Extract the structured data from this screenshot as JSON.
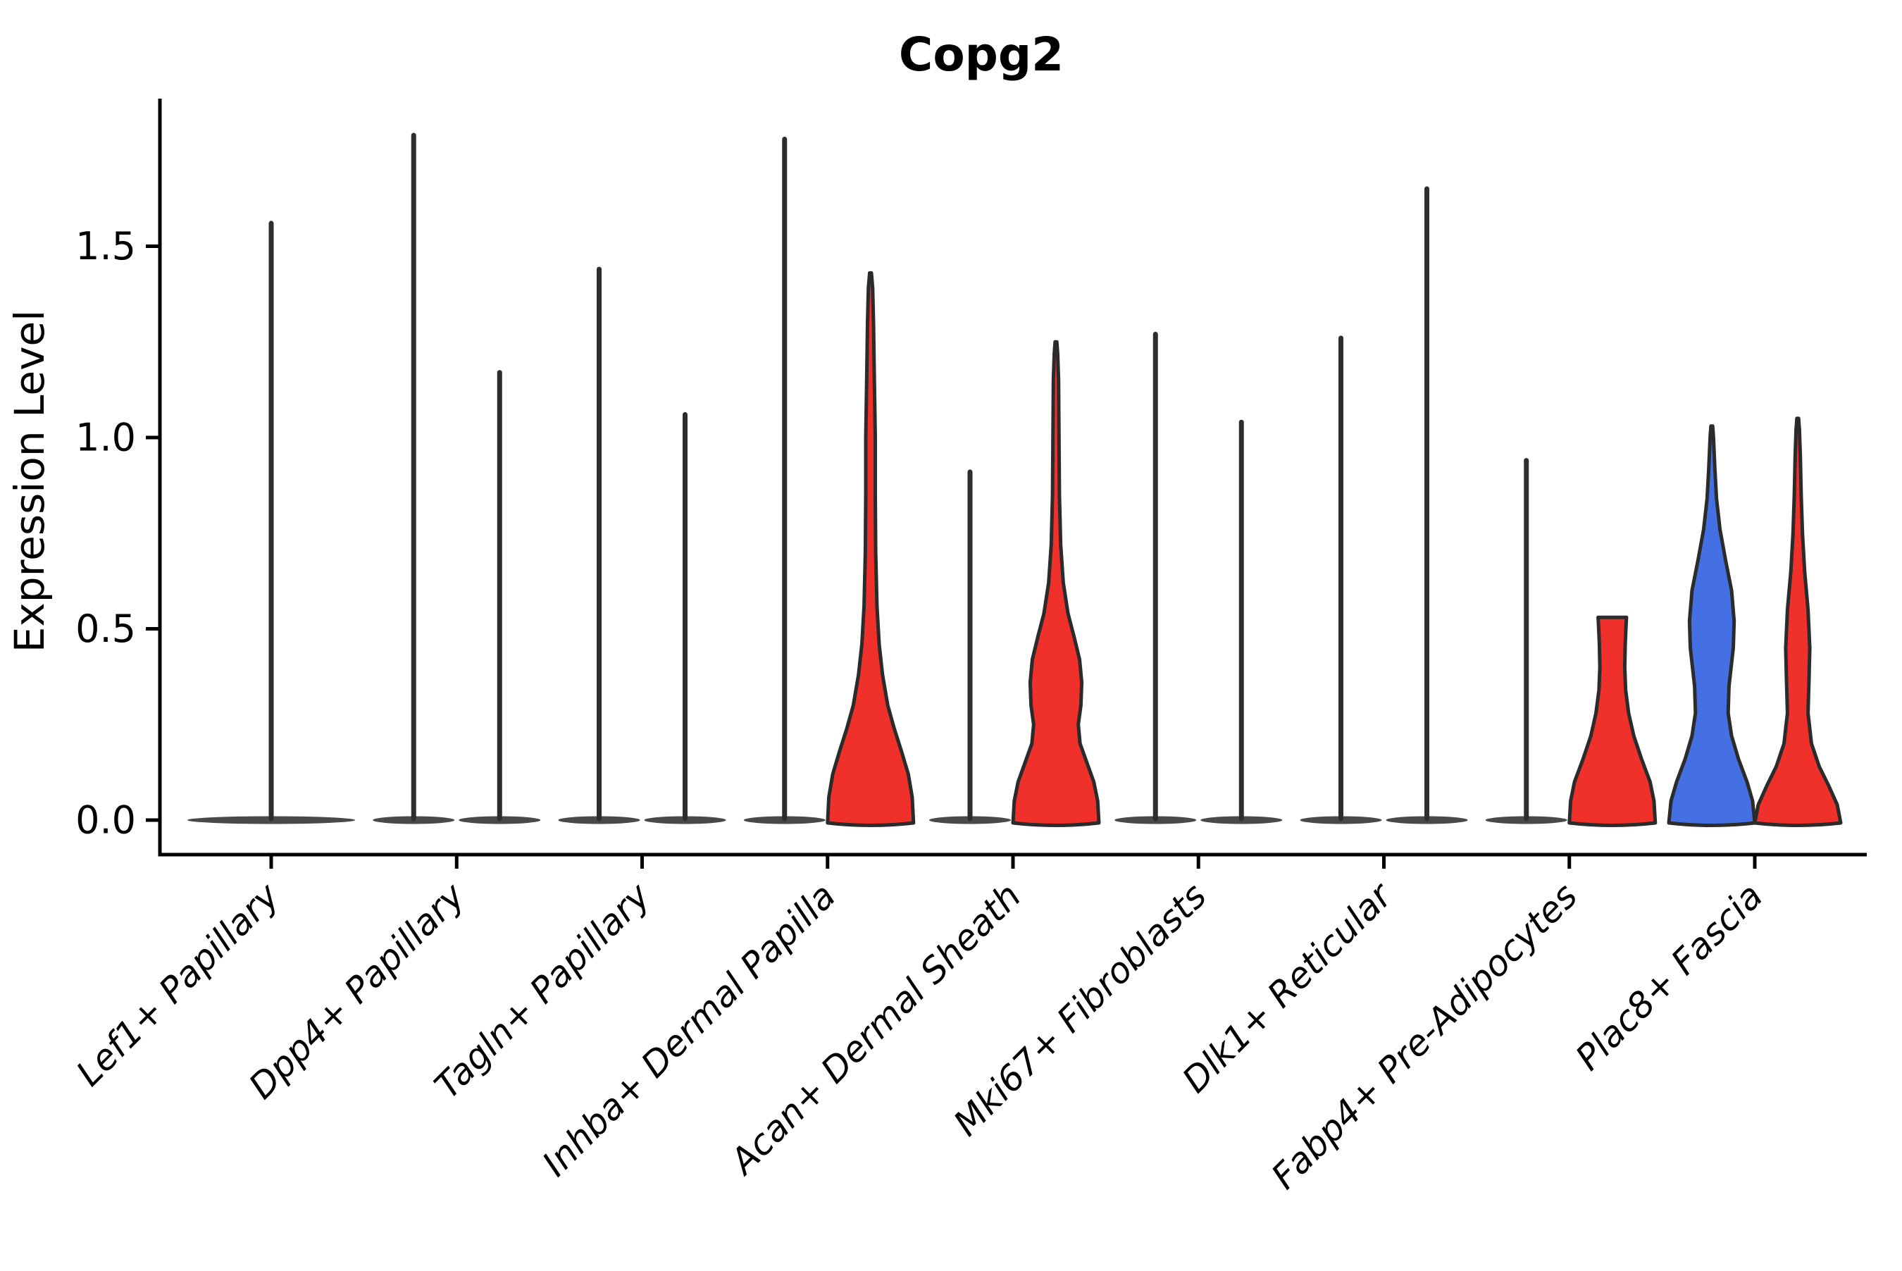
{
  "chart_data": {
    "type": "violin",
    "title": "Copg2",
    "xlabel": "",
    "ylabel": "Expression Level",
    "ytick_labels": [
      "0.0",
      "0.5",
      "1.0",
      "1.5"
    ],
    "ylim": [
      -0.09,
      1.89
    ],
    "grid": false,
    "legend": null,
    "categories": [
      "Lef1+ Papillary",
      "Dpp4+ Papillary",
      "Tagln+ Papillary",
      "Inhba+ Dermal Papilla",
      "Acan+ Dermal Sheath",
      "Mki67+ Fibroblasts",
      "Dlk1+ Reticular",
      "Fabp4+ Pre-Adipocytes",
      "Plac8+ Fascia"
    ],
    "palette": {
      "red": "#f0302b",
      "blue": "#4570e3",
      "spike": "#2d2d2d",
      "outline": "#2b2b2b",
      "axis": "#000000"
    },
    "violins": [
      {
        "category": "Lef1+ Papillary",
        "position": "center",
        "style": "spike",
        "max": 1.56
      },
      {
        "category": "Dpp4+ Papillary",
        "position": "left",
        "style": "spike",
        "max": 1.79
      },
      {
        "category": "Dpp4+ Papillary",
        "position": "right",
        "style": "spike",
        "max": 1.17
      },
      {
        "category": "Tagln+ Papillary",
        "position": "left",
        "style": "spike",
        "max": 1.44
      },
      {
        "category": "Tagln+ Papillary",
        "position": "right",
        "style": "spike",
        "max": 1.06
      },
      {
        "category": "Inhba+ Dermal Papilla",
        "position": "left",
        "style": "spike",
        "max": 1.78
      },
      {
        "category": "Inhba+ Dermal Papilla",
        "position": "right",
        "style": "body",
        "color": "red",
        "max": 1.43,
        "profile": "tall_taper"
      },
      {
        "category": "Acan+ Dermal Sheath",
        "position": "left",
        "style": "spike",
        "max": 0.91
      },
      {
        "category": "Acan+ Dermal Sheath",
        "position": "right",
        "style": "body",
        "color": "red",
        "max": 1.25,
        "profile": "double_bulge"
      },
      {
        "category": "Mki67+ Fibroblasts",
        "position": "left",
        "style": "spike",
        "max": 1.27
      },
      {
        "category": "Mki67+ Fibroblasts",
        "position": "right",
        "style": "spike",
        "max": 1.04
      },
      {
        "category": "Dlk1+ Reticular",
        "position": "left",
        "style": "spike",
        "max": 1.26
      },
      {
        "category": "Dlk1+ Reticular",
        "position": "right",
        "style": "spike",
        "max": 1.65
      },
      {
        "category": "Fabp4+ Pre-Adipocytes",
        "position": "left",
        "style": "spike",
        "max": 0.94
      },
      {
        "category": "Fabp4+ Pre-Adipocytes",
        "position": "right",
        "style": "body",
        "color": "red",
        "max": 0.53,
        "profile": "flat_top",
        "flat_top": true
      },
      {
        "category": "Plac8+ Fascia",
        "position": "left",
        "style": "body",
        "color": "blue",
        "max": 1.03,
        "profile": "mid_bulge"
      },
      {
        "category": "Plac8+ Fascia",
        "position": "right",
        "style": "body",
        "color": "red",
        "max": 1.05,
        "profile": "slim_bulge"
      }
    ],
    "profiles": {
      "tall_taper": [
        [
          0.0,
          1.0
        ],
        [
          0.06,
          0.97
        ],
        [
          0.12,
          0.88
        ],
        [
          0.18,
          0.72
        ],
        [
          0.24,
          0.55
        ],
        [
          0.3,
          0.4
        ],
        [
          0.38,
          0.28
        ],
        [
          0.46,
          0.2
        ],
        [
          0.56,
          0.15
        ],
        [
          0.7,
          0.12
        ],
        [
          0.85,
          0.11
        ],
        [
          1.0,
          0.11
        ],
        [
          1.15,
          0.09
        ],
        [
          1.3,
          0.07
        ],
        [
          1.39,
          0.05
        ],
        [
          1.43,
          0.02
        ]
      ],
      "double_bulge": [
        [
          0.0,
          1.0
        ],
        [
          0.05,
          0.97
        ],
        [
          0.1,
          0.88
        ],
        [
          0.15,
          0.72
        ],
        [
          0.2,
          0.56
        ],
        [
          0.25,
          0.52
        ],
        [
          0.3,
          0.58
        ],
        [
          0.36,
          0.6
        ],
        [
          0.42,
          0.55
        ],
        [
          0.48,
          0.42
        ],
        [
          0.54,
          0.28
        ],
        [
          0.62,
          0.17
        ],
        [
          0.72,
          0.11
        ],
        [
          0.85,
          0.08
        ],
        [
          1.0,
          0.07
        ],
        [
          1.15,
          0.06
        ],
        [
          1.22,
          0.04
        ],
        [
          1.25,
          0.02
        ]
      ],
      "flat_top": [
        [
          0.0,
          1.0
        ],
        [
          0.05,
          0.97
        ],
        [
          0.1,
          0.88
        ],
        [
          0.16,
          0.68
        ],
        [
          0.22,
          0.5
        ],
        [
          0.28,
          0.38
        ],
        [
          0.34,
          0.31
        ],
        [
          0.4,
          0.29
        ],
        [
          0.46,
          0.3
        ],
        [
          0.51,
          0.32
        ],
        [
          0.53,
          0.33
        ]
      ],
      "mid_bulge": [
        [
          0.0,
          1.0
        ],
        [
          0.05,
          0.95
        ],
        [
          0.1,
          0.82
        ],
        [
          0.16,
          0.62
        ],
        [
          0.22,
          0.46
        ],
        [
          0.28,
          0.38
        ],
        [
          0.35,
          0.4
        ],
        [
          0.45,
          0.5
        ],
        [
          0.52,
          0.52
        ],
        [
          0.6,
          0.46
        ],
        [
          0.68,
          0.32
        ],
        [
          0.76,
          0.19
        ],
        [
          0.84,
          0.11
        ],
        [
          0.92,
          0.07
        ],
        [
          1.0,
          0.04
        ],
        [
          1.03,
          0.02
        ]
      ],
      "slim_bulge": [
        [
          0.0,
          1.0
        ],
        [
          0.04,
          0.92
        ],
        [
          0.09,
          0.72
        ],
        [
          0.14,
          0.5
        ],
        [
          0.2,
          0.32
        ],
        [
          0.28,
          0.24
        ],
        [
          0.36,
          0.26
        ],
        [
          0.45,
          0.28
        ],
        [
          0.55,
          0.24
        ],
        [
          0.65,
          0.16
        ],
        [
          0.75,
          0.11
        ],
        [
          0.85,
          0.08
        ],
        [
          0.95,
          0.06
        ],
        [
          1.02,
          0.04
        ],
        [
          1.05,
          0.02
        ]
      ]
    }
  }
}
